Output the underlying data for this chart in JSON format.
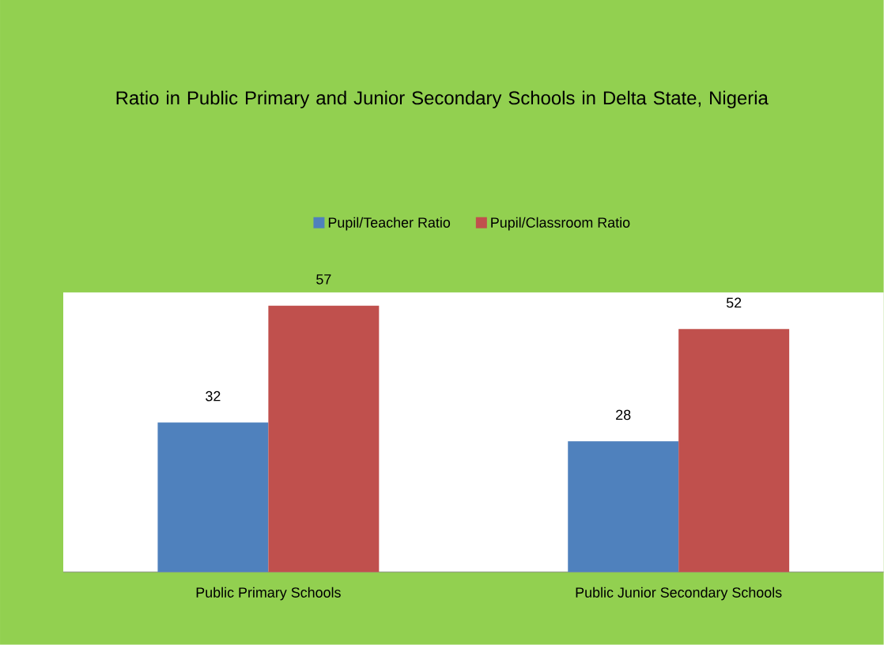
{
  "chart_data": {
    "type": "bar",
    "title": "Ratio in Public Primary and Junior Secondary Schools in Delta State, Nigeria",
    "categories": [
      "Public Primary Schools",
      "Public Junior Secondary Schools"
    ],
    "series": [
      {
        "name": "Pupil/Teacher Ratio",
        "color": "#4f81bd",
        "values": [
          32,
          28
        ]
      },
      {
        "name": "Pupil/Classroom Ratio",
        "color": "#c0504d",
        "values": [
          57,
          52
        ]
      }
    ],
    "data_labels": true,
    "legend": "top"
  }
}
